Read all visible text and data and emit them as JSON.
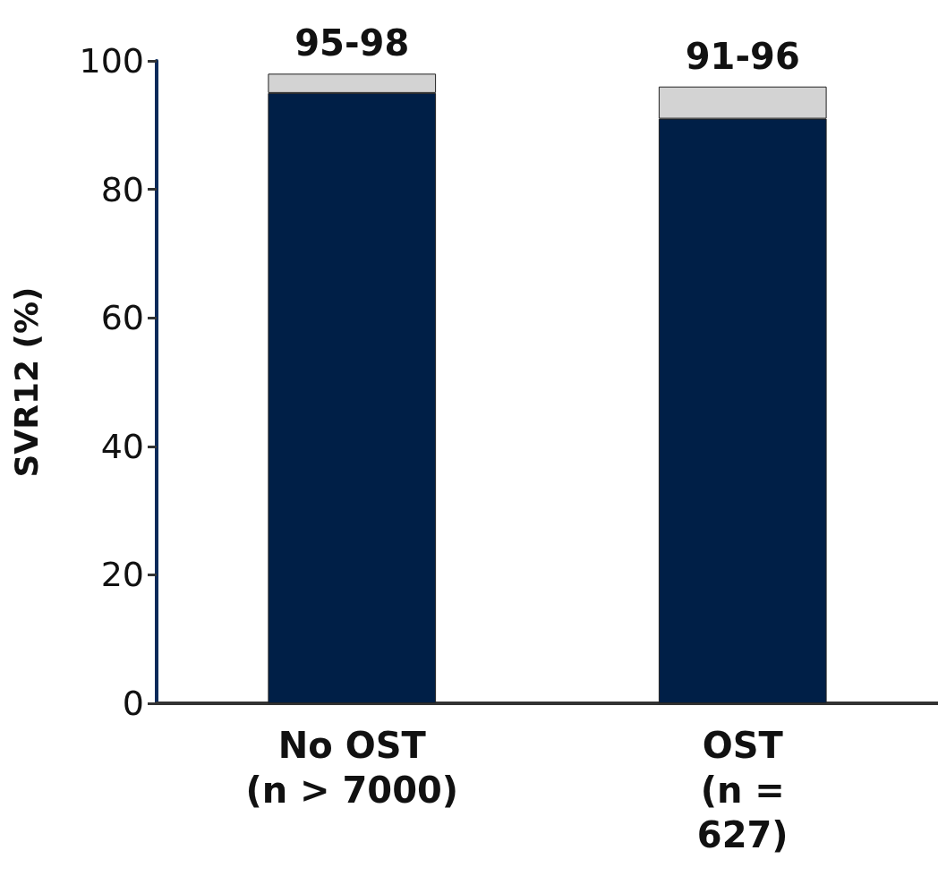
{
  "chart_data": {
    "type": "bar",
    "stacked": true,
    "ylabel": "SVR12 (%)",
    "categories": [
      "No OST\n(n > 7000)",
      "OST\n(n =\n627)"
    ],
    "series": [
      {
        "color": "#001f47",
        "values": [
          95,
          91
        ]
      },
      {
        "color": "#d3d3d3",
        "values": [
          3,
          5
        ]
      }
    ],
    "ylim": [
      0,
      100
    ],
    "yticks": [
      0,
      20,
      40,
      60,
      80,
      100
    ],
    "grid": false,
    "annotations": [
      {
        "text": "95-98",
        "x": "No OST\n(n > 7000)",
        "y": 98
      },
      {
        "text": "91-96",
        "x": "OST\n(n =\n627)",
        "y": 96
      }
    ]
  }
}
